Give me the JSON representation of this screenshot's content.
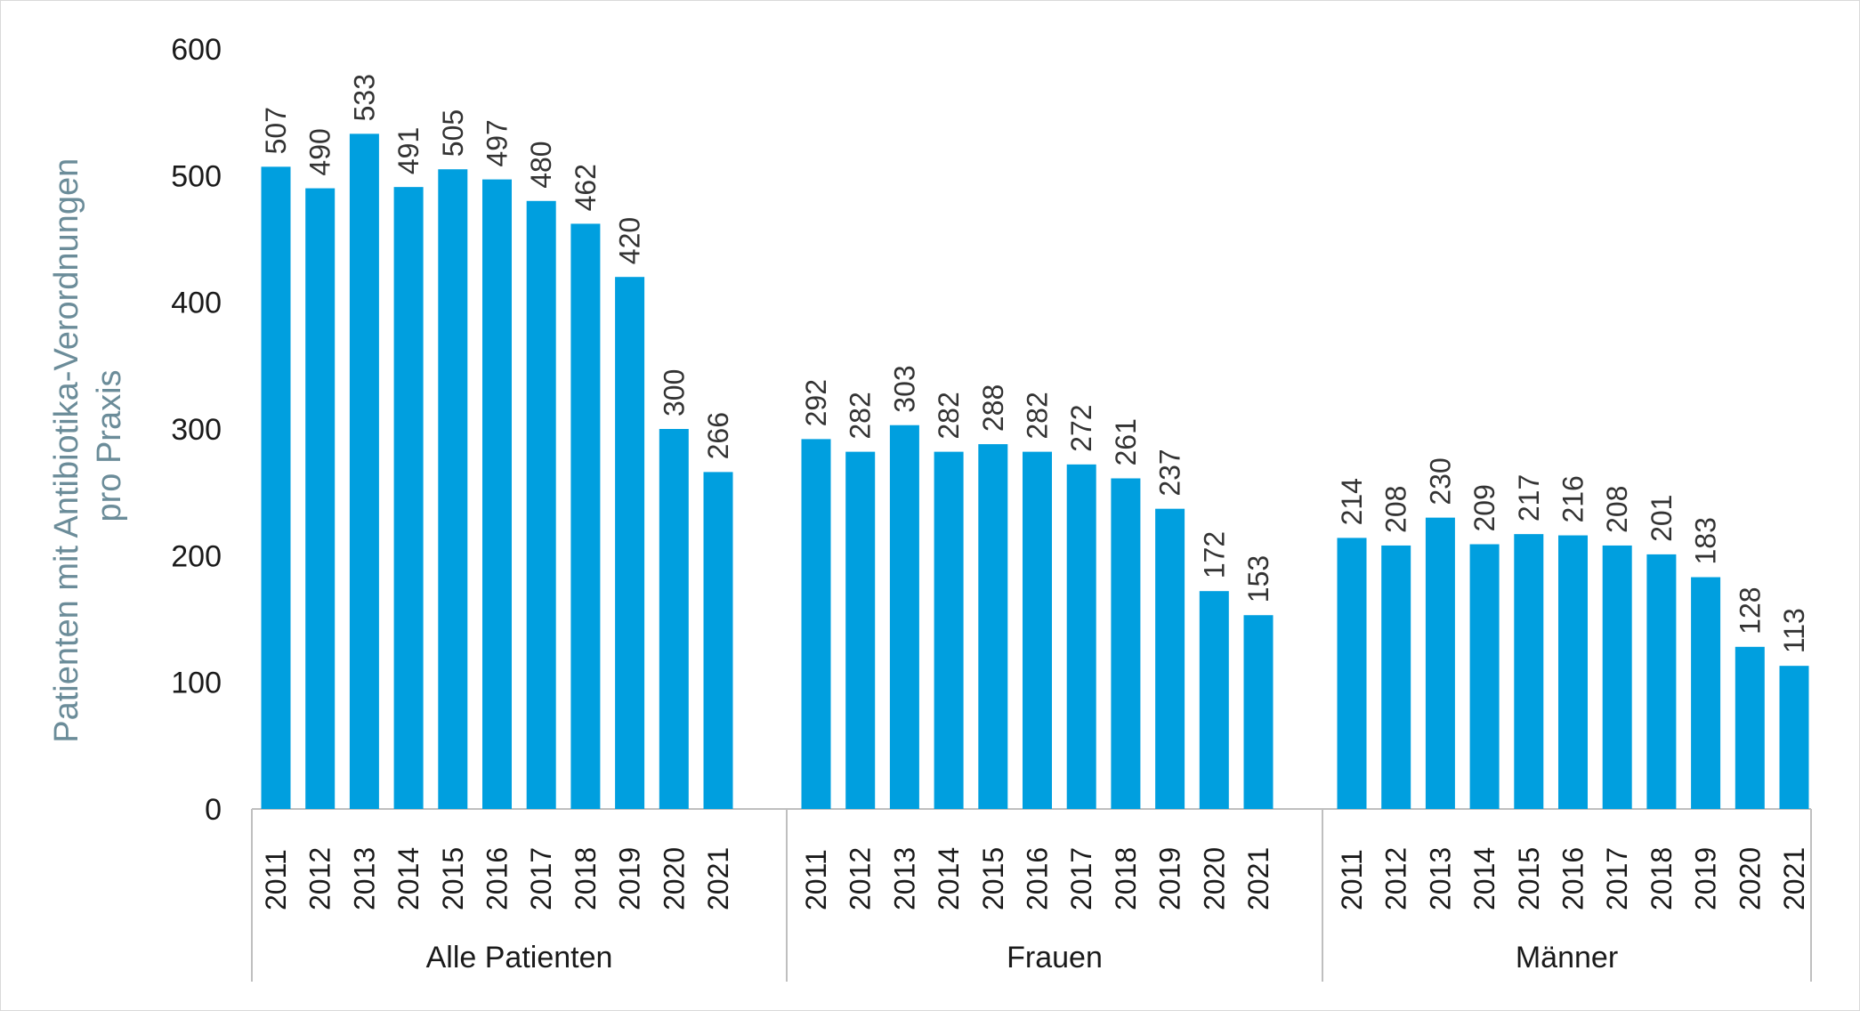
{
  "chart_data": {
    "type": "bar",
    "ylabel_lines": [
      "Patienten mit Antibiotika-Verordnungen",
      "pro Praxis"
    ],
    "ylim": [
      0,
      600
    ],
    "yticks": [
      0,
      100,
      200,
      300,
      400,
      500,
      600
    ],
    "years": [
      "2011",
      "2012",
      "2013",
      "2014",
      "2015",
      "2016",
      "2017",
      "2018",
      "2019",
      "2020",
      "2021"
    ],
    "bar_color": "#009fdf",
    "groups": [
      {
        "name": "Alle Patienten",
        "values": [
          507,
          490,
          533,
          491,
          505,
          497,
          480,
          462,
          420,
          300,
          266
        ]
      },
      {
        "name": "Frauen",
        "values": [
          292,
          282,
          303,
          282,
          288,
          282,
          272,
          261,
          237,
          172,
          153
        ]
      },
      {
        "name": "Männer",
        "values": [
          214,
          208,
          230,
          209,
          217,
          216,
          208,
          201,
          183,
          128,
          113
        ]
      }
    ]
  }
}
